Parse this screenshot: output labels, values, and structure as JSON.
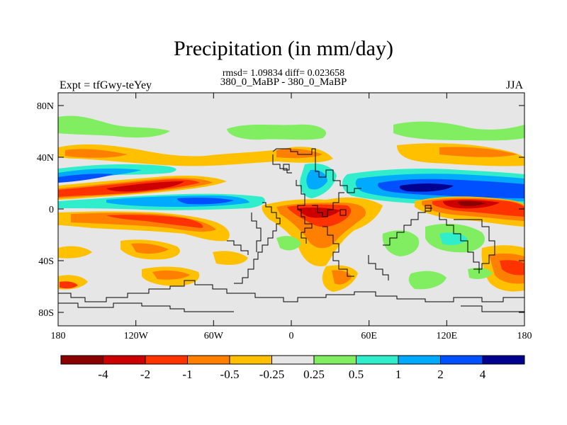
{
  "title": "Precipitation (in mm/day)",
  "stats_line": "rmsd= 1.09834 diff= 0.023658",
  "case_line": "380_0_MaBP - 380_0_MaBP",
  "left_label": "Expt = tfGwy-teYey",
  "right_label": "JJA",
  "lat_labels": [
    "80N",
    "40N",
    "0",
    "40S",
    "80S"
  ],
  "lat_values": [
    80,
    40,
    0,
    -40,
    -80
  ],
  "lon_labels": [
    "180",
    "120W",
    "60W",
    "0",
    "60E",
    "120E",
    "180"
  ],
  "lon_values": [
    -180,
    -120,
    -60,
    0,
    60,
    120,
    180
  ],
  "colorbar": {
    "colors": [
      "#8b0000",
      "#cc0000",
      "#ff3300",
      "#ff7f00",
      "#ffc000",
      "#e6e6e6",
      "#80ee60",
      "#30eecc",
      "#00aaff",
      "#0050ff",
      "#000090"
    ],
    "labels": [
      "-4",
      "-2",
      "-1",
      "-0.5",
      "-0.25",
      "0.25",
      "0.5",
      "1",
      "2",
      "4"
    ]
  },
  "colors": {
    "no_change": "#e6e6e6",
    "strong_dry": "#8b0000",
    "dry": "#cc0000",
    "moderate_dry": "#ff3300",
    "light_dry": "#ff7f00",
    "slight_dry": "#ffc000",
    "slight_wet": "#80ee60",
    "light_wet": "#30eecc",
    "wet": "#00aaff",
    "strong_wet": "#0050ff",
    "very_strong_wet": "#000090"
  }
}
